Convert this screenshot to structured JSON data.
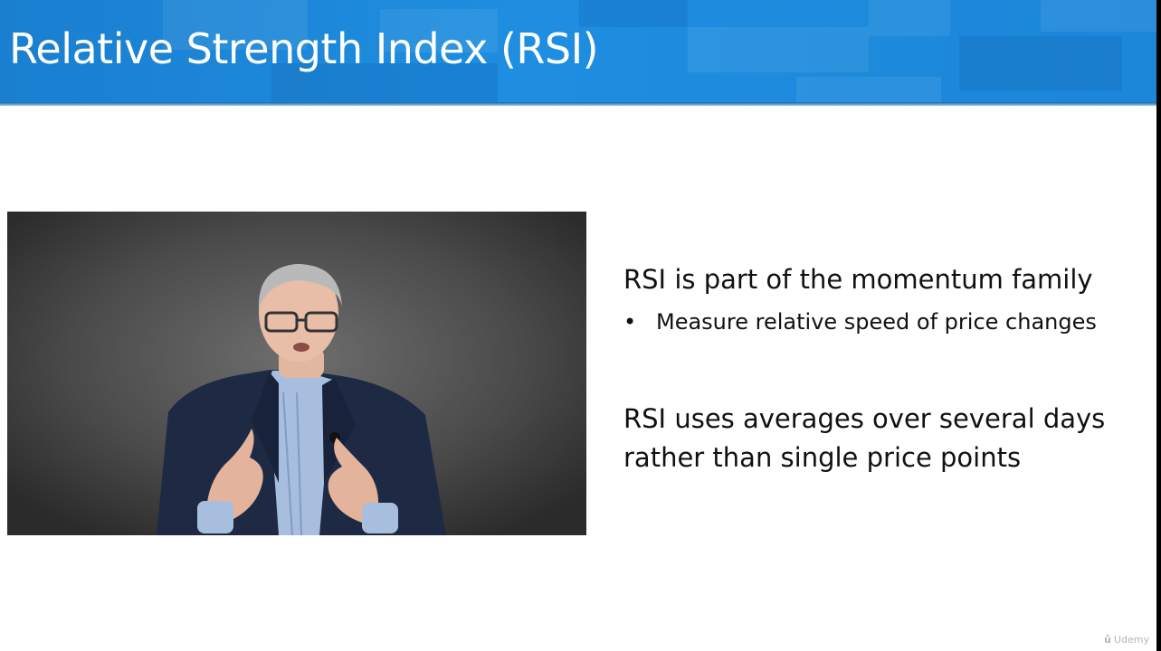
{
  "slide": {
    "title": "Relative Strength Index (RSI)",
    "bullets": [
      {
        "text": "RSI is part of the momentum family",
        "sub": [
          {
            "marker": "•",
            "text": "Measure relative speed of price changes"
          }
        ]
      },
      {
        "text": "RSI uses averages over several days rather than single price points",
        "sub": []
      }
    ]
  },
  "video": {
    "description_icon": "presenter-video"
  },
  "watermark": {
    "logo_icon": "udemy-logo-icon",
    "text": "Udemy"
  },
  "colors": {
    "header_blue": "#1f8ee0",
    "slide_background": "#ffffff",
    "text": "#111111"
  }
}
